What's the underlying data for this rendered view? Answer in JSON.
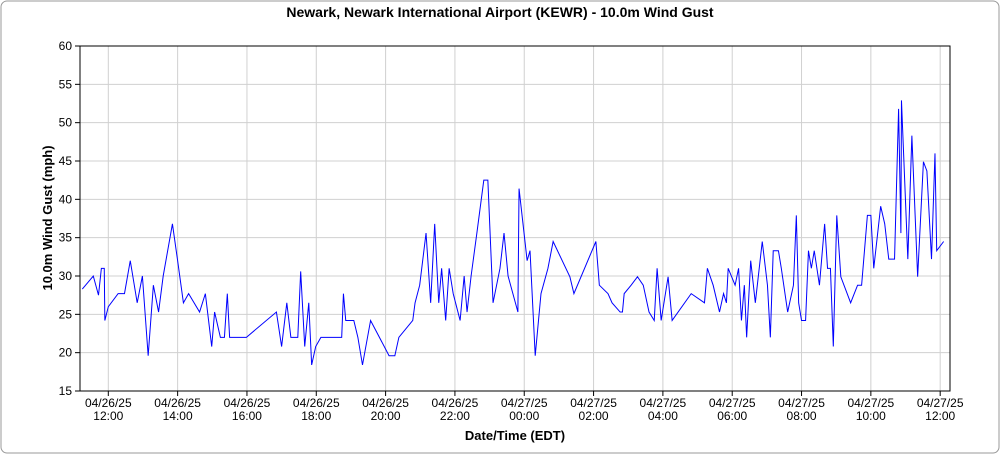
{
  "chart_data": {
    "type": "line",
    "title": "Newark, Newark International Airport (KEWR) - 10.0m Wind Gust",
    "x_label": "Date/Time (EDT)",
    "y_label": "10.0m Wind Gust (mph)",
    "grid": true,
    "xlim": [
      "2025-04-26T11:11",
      "2025-04-27T12:17"
    ],
    "ylim": [
      15,
      60
    ],
    "yticks": [
      15,
      20,
      25,
      30,
      35,
      40,
      45,
      50,
      55,
      60
    ],
    "xticks": [
      {
        "value": "2025-04-26T12:00",
        "label": [
          "04/26/25",
          "12:00"
        ]
      },
      {
        "value": "2025-04-26T14:00",
        "label": [
          "04/26/25",
          "14:00"
        ]
      },
      {
        "value": "2025-04-26T16:00",
        "label": [
          "04/26/25",
          "16:00"
        ]
      },
      {
        "value": "2025-04-26T18:00",
        "label": [
          "04/26/25",
          "18:00"
        ]
      },
      {
        "value": "2025-04-26T20:00",
        "label": [
          "04/26/25",
          "20:00"
        ]
      },
      {
        "value": "2025-04-26T22:00",
        "label": [
          "04/26/25",
          "22:00"
        ]
      },
      {
        "value": "2025-04-27T00:00",
        "label": [
          "04/27/25",
          "00:00"
        ]
      },
      {
        "value": "2025-04-27T02:00",
        "label": [
          "04/27/25",
          "02:00"
        ]
      },
      {
        "value": "2025-04-27T04:00",
        "label": [
          "04/27/25",
          "04:00"
        ]
      },
      {
        "value": "2025-04-27T06:00",
        "label": [
          "04/27/25",
          "06:00"
        ]
      },
      {
        "value": "2025-04-27T08:00",
        "label": [
          "04/27/25",
          "08:00"
        ]
      },
      {
        "value": "2025-04-27T10:00",
        "label": [
          "04/27/25",
          "10:00"
        ]
      },
      {
        "value": "2025-04-27T12:00",
        "label": [
          "04/27/25",
          "12:00"
        ]
      }
    ],
    "x": [
      "2025-04-26T11:15",
      "2025-04-26T11:34",
      "2025-04-26T11:43",
      "2025-04-26T11:48",
      "2025-04-26T11:53",
      "2025-04-26T11:54",
      "2025-04-26T12:00",
      "2025-04-26T12:17",
      "2025-04-26T12:28",
      "2025-04-26T12:38",
      "2025-04-26T12:50",
      "2025-04-26T12:59",
      "2025-04-26T13:09",
      "2025-04-26T13:18",
      "2025-04-26T13:27",
      "2025-04-26T13:35",
      "2025-04-26T13:51",
      "2025-04-26T14:00",
      "2025-04-26T14:10",
      "2025-04-26T14:19",
      "2025-04-26T14:38",
      "2025-04-26T14:48",
      "2025-04-26T14:59",
      "2025-04-26T15:04",
      "2025-04-26T15:14",
      "2025-04-26T15:21",
      "2025-04-26T15:26",
      "2025-04-26T15:30",
      "2025-04-26T15:59",
      "2025-04-26T16:51",
      "2025-04-26T17:00",
      "2025-04-26T17:09",
      "2025-04-26T17:16",
      "2025-04-26T17:28",
      "2025-04-26T17:33",
      "2025-04-26T17:40",
      "2025-04-26T17:47",
      "2025-04-26T17:52",
      "2025-04-26T17:59",
      "2025-04-26T18:08",
      "2025-04-26T18:44",
      "2025-04-26T18:47",
      "2025-04-26T18:51",
      "2025-04-26T19:05",
      "2025-04-26T19:12",
      "2025-04-26T19:20",
      "2025-04-26T19:34",
      "2025-04-26T20:06",
      "2025-04-26T20:16",
      "2025-04-26T20:23",
      "2025-04-26T20:47",
      "2025-04-26T20:51",
      "2025-04-26T20:59",
      "2025-04-26T21:10",
      "2025-04-26T21:18",
      "2025-04-26T21:25",
      "2025-04-26T21:32",
      "2025-04-26T21:37",
      "2025-04-26T21:44",
      "2025-04-26T21:50",
      "2025-04-26T21:57",
      "2025-04-26T22:09",
      "2025-04-26T22:16",
      "2025-04-26T22:21",
      "2025-04-26T22:28",
      "2025-04-26T22:38",
      "2025-04-26T22:50",
      "2025-04-26T22:57",
      "2025-04-26T23:06",
      "2025-04-26T23:18",
      "2025-04-26T23:25",
      "2025-04-26T23:32",
      "2025-04-26T23:49",
      "2025-04-26T23:51",
      "2025-04-27T00:05",
      "2025-04-27T00:10",
      "2025-04-27T00:19",
      "2025-04-27T00:29",
      "2025-04-27T00:41",
      "2025-04-27T00:50",
      "2025-04-27T01:19",
      "2025-04-27T01:26",
      "2025-04-27T02:04",
      "2025-04-27T02:10",
      "2025-04-27T02:25",
      "2025-04-27T02:32",
      "2025-04-27T02:46",
      "2025-04-27T02:50",
      "2025-04-27T02:53",
      "2025-04-27T03:05",
      "2025-04-27T03:16",
      "2025-04-27T03:26",
      "2025-04-27T03:36",
      "2025-04-27T03:45",
      "2025-04-27T03:50",
      "2025-04-27T03:57",
      "2025-04-27T04:09",
      "2025-04-27T04:16",
      "2025-04-27T04:49",
      "2025-04-27T05:12",
      "2025-04-27T05:17",
      "2025-04-27T05:27",
      "2025-04-27T05:38",
      "2025-04-27T05:45",
      "2025-04-27T05:50",
      "2025-04-27T05:53",
      "2025-04-27T06:05",
      "2025-04-27T06:11",
      "2025-04-27T06:16",
      "2025-04-27T06:21",
      "2025-04-27T06:25",
      "2025-04-27T06:32",
      "2025-04-27T06:40",
      "2025-04-27T06:52",
      "2025-04-27T07:01",
      "2025-04-27T07:06",
      "2025-04-27T07:11",
      "2025-04-27T07:20",
      "2025-04-27T07:25",
      "2025-04-27T07:36",
      "2025-04-27T07:46",
      "2025-04-27T07:51",
      "2025-04-27T07:55",
      "2025-04-27T08:00",
      "2025-04-27T08:07",
      "2025-04-27T08:12",
      "2025-04-27T08:17",
      "2025-04-27T08:22",
      "2025-04-27T08:31",
      "2025-04-27T08:40",
      "2025-04-27T08:45",
      "2025-04-27T08:50",
      "2025-04-27T08:55",
      "2025-04-27T09:01",
      "2025-04-27T09:08",
      "2025-04-27T09:25",
      "2025-04-27T09:37",
      "2025-04-27T09:44",
      "2025-04-27T09:54",
      "2025-04-27T10:00",
      "2025-04-27T10:05",
      "2025-04-27T10:17",
      "2025-04-27T10:24",
      "2025-04-27T10:31",
      "2025-04-27T10:41",
      "2025-04-27T10:48",
      "2025-04-27T10:52",
      "2025-04-27T10:53",
      "2025-04-27T11:04",
      "2025-04-27T11:11",
      "2025-04-27T11:21",
      "2025-04-27T11:31",
      "2025-04-27T11:37",
      "2025-04-27T11:45",
      "2025-04-27T11:51",
      "2025-04-27T11:54",
      "2025-04-27T12:06"
    ],
    "series": [
      {
        "color": "#0000ff",
        "values": [
          28.3,
          30,
          27.5,
          31,
          31,
          24.2,
          26,
          27.7,
          27.7,
          32,
          26.5,
          30,
          19.6,
          28.8,
          25.3,
          30,
          36.8,
          32,
          26.5,
          27.7,
          25.3,
          27.7,
          20.8,
          25.3,
          22,
          22,
          27.7,
          22,
          22,
          25.3,
          20.8,
          26.5,
          22,
          22,
          30.6,
          20.8,
          26.5,
          18.4,
          20.8,
          22,
          22,
          27.7,
          24.2,
          24.2,
          22,
          18.4,
          24.2,
          19.6,
          19.6,
          22,
          24.2,
          26.5,
          28.8,
          35.6,
          26.5,
          36.8,
          26.5,
          31,
          24.2,
          31,
          27.7,
          24.2,
          30,
          25.3,
          30,
          35.6,
          42.5,
          42.5,
          26.5,
          31,
          35.6,
          30,
          25.3,
          41.4,
          32,
          33.3,
          19.6,
          27.7,
          31,
          34.5,
          29.9,
          27.7,
          34.5,
          28.8,
          27.7,
          26.5,
          25.3,
          25.3,
          27.7,
          28.8,
          29.9,
          28.8,
          25.3,
          24.2,
          31,
          24.2,
          29.9,
          24.2,
          27.7,
          26.5,
          31,
          28.8,
          25.3,
          27.7,
          26.5,
          31,
          28.8,
          31,
          24.2,
          28.8,
          22,
          32,
          26.5,
          34.5,
          28.8,
          22,
          33.3,
          33.3,
          31,
          25.3,
          28.8,
          37.9,
          26.5,
          24.2,
          24.2,
          33.3,
          31,
          33.3,
          28.8,
          36.8,
          31,
          31,
          20.8,
          37.9,
          29.9,
          26.5,
          28.8,
          28.8,
          37.9,
          37.9,
          31,
          39.1,
          36.8,
          32.2,
          32.2,
          51.8,
          35.6,
          52.9,
          32.2,
          48.3,
          29.9,
          44.9,
          43.7,
          32.2,
          46,
          33.3,
          34.5
        ]
      }
    ]
  }
}
